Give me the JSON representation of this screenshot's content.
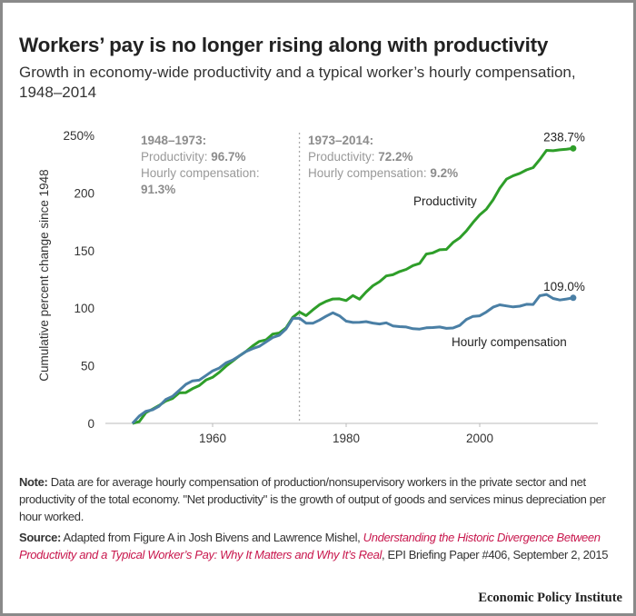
{
  "title": "Workers’ pay is no longer rising along with productivity",
  "subtitle": "Growth in economy-wide productivity and a typical worker’s hourly compensation, 1948–2014",
  "chart_data": {
    "type": "line",
    "title": "Workers’ pay is no longer rising along with productivity",
    "ylabel": "Cumulative percent change since 1948",
    "xlabel": "",
    "xlim": [
      1948,
      2014
    ],
    "ylim": [
      0,
      250
    ],
    "x_ticks": [
      1960,
      1980,
      2000
    ],
    "y_ticks": [
      0,
      50,
      100,
      150,
      200,
      250
    ],
    "y_tick_labels": [
      "0",
      "50",
      "100",
      "150",
      "200",
      "250%"
    ],
    "grid": false,
    "x": [
      1948,
      1949,
      1950,
      1951,
      1952,
      1953,
      1954,
      1955,
      1956,
      1957,
      1958,
      1959,
      1960,
      1961,
      1962,
      1963,
      1964,
      1965,
      1966,
      1967,
      1968,
      1969,
      1970,
      1971,
      1972,
      1973,
      1974,
      1975,
      1976,
      1977,
      1978,
      1979,
      1980,
      1981,
      1982,
      1983,
      1984,
      1985,
      1986,
      1987,
      1988,
      1989,
      1990,
      1991,
      1992,
      1993,
      1994,
      1995,
      1996,
      1997,
      1998,
      1999,
      2000,
      2001,
      2002,
      2003,
      2004,
      2005,
      2006,
      2007,
      2008,
      2009,
      2010,
      2011,
      2012,
      2013,
      2014
    ],
    "series": [
      {
        "name": "Productivity",
        "color": "#2e9e29",
        "end_label": "238.7%",
        "values": [
          0,
          1.5,
          9.3,
          12.4,
          15.6,
          19.5,
          21.6,
          26.5,
          26.7,
          30.1,
          32.8,
          37.6,
          40.0,
          44.3,
          49.6,
          54.1,
          58.6,
          62.5,
          67.2,
          71.1,
          72.5,
          77.5,
          78.5,
          83,
          92,
          96.7,
          93.5,
          98.5,
          103,
          105.9,
          108,
          108.1,
          106.6,
          111,
          107.8,
          114,
          119.5,
          123,
          128,
          129,
          131.8,
          133.7,
          137,
          138.9,
          147,
          148,
          150.7,
          151,
          157,
          161,
          167,
          174.4,
          181,
          186,
          194,
          204,
          212,
          215,
          217,
          220,
          222,
          229,
          237,
          236.7,
          237.5,
          238,
          238.7
        ]
      },
      {
        "name": "Hourly compensation",
        "color": "#4a7fa5",
        "end_label": "109.0%",
        "values": [
          0,
          6.3,
          10.5,
          11.8,
          15,
          20.8,
          23.5,
          28.7,
          33.9,
          36.9,
          37.5,
          41.6,
          45.5,
          48,
          52.5,
          55,
          58.5,
          62.4,
          64.9,
          66.9,
          70.7,
          74.5,
          76.6,
          82,
          91.2,
          91.3,
          87,
          86.9,
          89.7,
          93,
          96,
          93.4,
          88.7,
          87.6,
          87.8,
          88.3,
          87.1,
          86.3,
          87.3,
          84.6,
          84,
          83.7,
          82.2,
          81.9,
          83,
          83.2,
          83.7,
          82.5,
          82.8,
          85,
          90.2,
          92.9,
          93.4,
          96.7,
          100.9,
          102.9,
          102,
          101.1,
          101.7,
          103.4,
          103.2,
          110.8,
          111.9,
          108.4,
          107.1,
          108,
          109
        ]
      }
    ],
    "reference_line": {
      "x": 1973,
      "style": "dotted"
    },
    "annotations": {
      "period1": {
        "heading": "1948–1973:",
        "prod_label": "Productivity: ",
        "prod_value": "96.7%",
        "comp_label": "Hourly compensation:",
        "comp_value": "91.3%"
      },
      "period2": {
        "heading": "1973–2014:",
        "prod_label": "Productivity: ",
        "prod_value": "72.2%",
        "comp_label": "Hourly compensation: ",
        "comp_value": "9.2%"
      }
    }
  },
  "note": {
    "label": "Note:",
    "text": " Data are for average hourly compensation of production/nonsupervisory workers in the private sector and net productivity of the total economy. \"Net productivity\" is the growth of output of goods and services minus depreciation per hour worked."
  },
  "source": {
    "label": "Source:",
    "text_before": " Adapted from Figure A in Josh Bivens and Lawrence Mishel, ",
    "link": "Understanding the Historic Divergence Between Productivity and a Typical Worker’s Pay: Why It Matters and Why It’s Real",
    "text_after": ", EPI Briefing Paper #406, September 2, 2015",
    "link_color": "#c8174d"
  },
  "logo": "Economic Policy Institute"
}
